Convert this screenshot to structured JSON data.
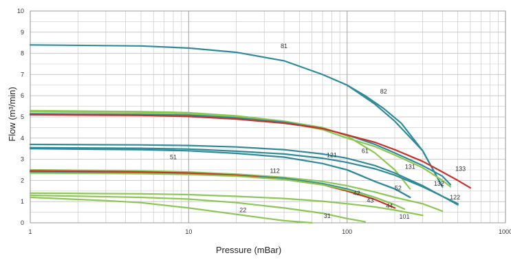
{
  "chart_data": {
    "type": "line",
    "title": "",
    "xlabel": "Pressure (mBar)",
    "ylabel": "Flow (m³/min)",
    "xscale": "log",
    "xlim": [
      1,
      1000
    ],
    "ylim": [
      0,
      10
    ],
    "x_ticks": [
      "1",
      "10",
      "100",
      "1000"
    ],
    "y_ticks": [
      "0",
      "1",
      "2",
      "3",
      "4",
      "5",
      "6",
      "7",
      "8",
      "9",
      "10"
    ],
    "grid": true,
    "colors": {
      "teal": "#2e8a98",
      "green": "#8cc653",
      "red": "#c8322a",
      "grid": "#c8c8c8"
    },
    "series": [
      {
        "name": "81",
        "color": "#2e8a98",
        "x": [
          1,
          5,
          10,
          20,
          40,
          70,
          100,
          150,
          200,
          300,
          400
        ],
        "y": [
          8.4,
          8.35,
          8.25,
          8.05,
          7.65,
          7.0,
          6.5,
          5.6,
          4.8,
          3.4,
          1.7
        ],
        "label_at": [
          40,
          8.25
        ]
      },
      {
        "name": "82",
        "color": "#2e8a98",
        "x": [
          100,
          130,
          170,
          220,
          300,
          400
        ],
        "y": [
          6.5,
          6.0,
          5.4,
          4.7,
          3.4,
          1.7
        ],
        "label_at": [
          170,
          6.1
        ]
      },
      {
        "name": "61",
        "color": "#8cc653",
        "x": [
          1,
          5,
          10,
          20,
          40,
          70,
          100,
          150,
          200,
          250
        ],
        "y": [
          5.3,
          5.25,
          5.2,
          5.05,
          4.8,
          4.5,
          4.1,
          3.3,
          2.5,
          1.6
        ],
        "label_at": [
          130,
          3.3
        ]
      },
      {
        "name": "131",
        "color": "#8cc653",
        "x": [
          1,
          5,
          10,
          20,
          40,
          70,
          100,
          150,
          200,
          300,
          400,
          450
        ],
        "y": [
          5.25,
          5.2,
          5.15,
          5.0,
          4.75,
          4.4,
          4.0,
          3.6,
          3.2,
          2.6,
          2.0,
          1.7
        ],
        "label_at": [
          250,
          2.55
        ]
      },
      {
        "name": "132",
        "color": "#2e8a98",
        "x": [
          1,
          5,
          10,
          20,
          40,
          70,
          100,
          150,
          200,
          300,
          400,
          450
        ],
        "y": [
          5.15,
          5.12,
          5.08,
          4.95,
          4.75,
          4.45,
          4.15,
          3.7,
          3.3,
          2.7,
          2.2,
          1.8
        ],
        "label_at": [
          380,
          1.75
        ]
      },
      {
        "name": "133",
        "color": "#c8322a",
        "x": [
          1,
          5,
          10,
          20,
          40,
          70,
          100,
          150,
          200,
          300,
          400,
          500,
          600
        ],
        "y": [
          5.1,
          5.07,
          5.02,
          4.9,
          4.7,
          4.45,
          4.15,
          3.8,
          3.45,
          2.9,
          2.4,
          2.0,
          1.65
        ],
        "label_at": [
          520,
          2.45
        ]
      },
      {
        "name": "121",
        "color": "#2e8a98",
        "x": [
          1,
          5,
          10,
          20,
          40,
          70,
          100,
          150,
          200,
          300,
          400,
          500
        ],
        "y": [
          3.7,
          3.68,
          3.65,
          3.58,
          3.45,
          3.25,
          3.05,
          2.7,
          2.35,
          1.75,
          1.25,
          0.85
        ],
        "label_at": [
          80,
          3.1
        ]
      },
      {
        "name": "122",
        "color": "#2e8a98",
        "x": [
          1,
          5,
          10,
          20,
          40,
          70,
          100,
          150,
          200,
          300,
          400,
          500
        ],
        "y": [
          3.55,
          3.52,
          3.48,
          3.38,
          3.25,
          3.05,
          2.85,
          2.55,
          2.25,
          1.7,
          1.25,
          0.9
        ],
        "label_at": [
          480,
          1.1
        ]
      },
      {
        "name": "51",
        "color": "#2e8a98",
        "x": [
          1,
          5,
          10,
          20,
          40,
          70,
          100,
          150,
          200,
          250
        ],
        "y": [
          3.5,
          3.45,
          3.4,
          3.28,
          3.1,
          2.8,
          2.5,
          1.95,
          1.6,
          1.2
        ],
        "label_at": [
          8,
          3.0
        ]
      },
      {
        "name": "52",
        "color": "#2e8a98",
        "x": [
          100,
          150,
          200,
          250
        ],
        "y": [
          2.5,
          1.95,
          1.6,
          1.2
        ],
        "label_at": [
          210,
          1.55
        ]
      },
      {
        "name": "112",
        "color": "#8cc653",
        "x": [
          1,
          5,
          10,
          20,
          40,
          70,
          100,
          150,
          200,
          300,
          400
        ],
        "y": [
          2.5,
          2.45,
          2.4,
          2.3,
          2.15,
          1.95,
          1.75,
          1.45,
          1.2,
          0.9,
          0.55
        ],
        "label_at": [
          35,
          2.35
        ]
      },
      {
        "name": "42",
        "color": "#2e8a98",
        "x": [
          1,
          5,
          10,
          20,
          40,
          70,
          100,
          150,
          200
        ],
        "y": [
          2.4,
          2.37,
          2.33,
          2.25,
          2.1,
          1.85,
          1.6,
          1.2,
          0.85
        ],
        "label_at": [
          115,
          1.3
        ]
      },
      {
        "name": "43",
        "color": "#c8322a",
        "x": [
          1,
          5,
          10,
          20,
          40,
          70,
          100,
          150,
          200
        ],
        "y": [
          2.45,
          2.4,
          2.35,
          2.25,
          2.05,
          1.8,
          1.5,
          1.1,
          0.7
        ],
        "label_at": [
          140,
          0.95
        ]
      },
      {
        "name": "44",
        "color": "#8cc653",
        "x": [
          1,
          5,
          10,
          20,
          40,
          70,
          100,
          150,
          200,
          230
        ],
        "y": [
          2.35,
          2.32,
          2.28,
          2.2,
          2.05,
          1.8,
          1.55,
          1.2,
          0.85,
          0.65
        ],
        "label_at": [
          185,
          0.7
        ]
      },
      {
        "name": "101",
        "color": "#8cc653",
        "x": [
          1,
          5,
          10,
          20,
          40,
          70,
          100,
          150,
          200,
          300
        ],
        "y": [
          1.4,
          1.37,
          1.33,
          1.25,
          1.15,
          1.02,
          0.9,
          0.75,
          0.6,
          0.35
        ],
        "label_at": [
          230,
          0.2
        ]
      },
      {
        "name": "22",
        "color": "#8cc653",
        "x": [
          1,
          3,
          5,
          10,
          20,
          30,
          40,
          60
        ],
        "y": [
          1.2,
          1.05,
          0.95,
          0.7,
          0.4,
          0.22,
          0.1,
          0.0
        ],
        "label_at": [
          22,
          0.5
        ]
      },
      {
        "name": "31",
        "color": "#8cc653",
        "x": [
          1,
          5,
          10,
          20,
          40,
          70,
          100,
          130
        ],
        "y": [
          1.3,
          1.2,
          1.12,
          0.95,
          0.7,
          0.45,
          0.2,
          0.05
        ],
        "label_at": [
          75,
          0.22
        ]
      }
    ]
  }
}
